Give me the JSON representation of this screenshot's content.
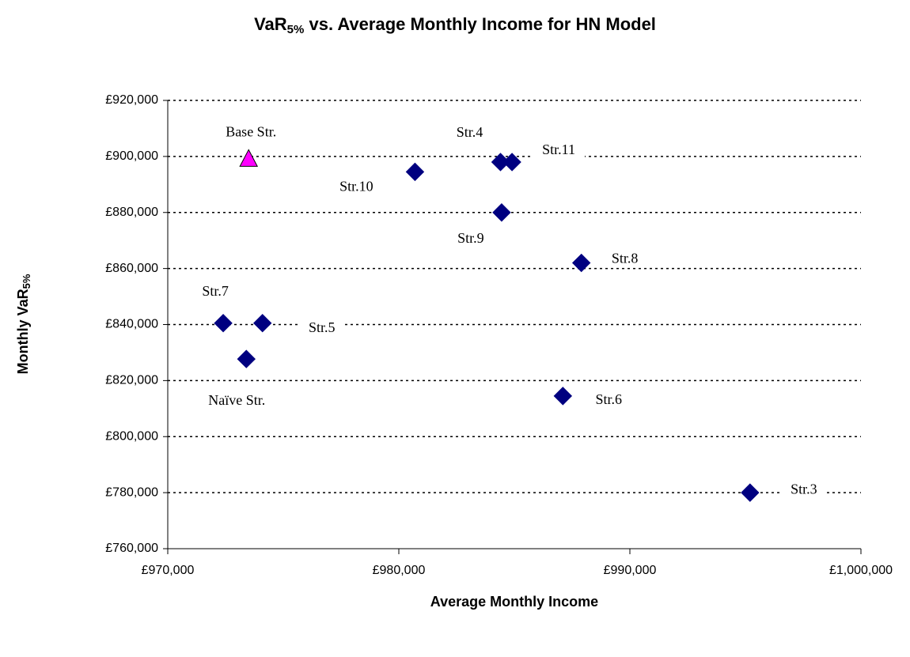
{
  "chart_data": {
    "type": "scatter",
    "title": {
      "main": "VaR",
      "sub": "5%",
      "rest": " vs. Average Monthly Income for HN Model"
    },
    "x_label": "Average Monthly Income",
    "y_label": {
      "main": "Monthly VaR",
      "sub": "5%"
    },
    "xlim": [
      970000,
      1000000
    ],
    "xticks": [
      {
        "value": 970000,
        "label": "£970,000"
      },
      {
        "value": 980000,
        "label": "£980,000"
      },
      {
        "value": 990000,
        "label": "£990,000"
      },
      {
        "value": 1000000,
        "label": "£1,000,000"
      }
    ],
    "ylim": [
      760000,
      920000
    ],
    "yticks": [
      {
        "value": 760000,
        "label": "£760,000"
      },
      {
        "value": 780000,
        "label": "£780,000"
      },
      {
        "value": 800000,
        "label": "£800,000"
      },
      {
        "value": 820000,
        "label": "£820,000"
      },
      {
        "value": 840000,
        "label": "£840,000"
      },
      {
        "value": 860000,
        "label": "£860,000"
      },
      {
        "value": 880000,
        "label": "£880,000"
      },
      {
        "value": 900000,
        "label": "£900,000"
      },
      {
        "value": 920000,
        "label": "£920,000"
      }
    ],
    "grid": true,
    "series": [
      {
        "color": "#ff00ff",
        "marker": "triangle",
        "x": [
          973500
        ],
        "values": [
          899000
        ],
        "labels": [
          "Base Str."
        ]
      },
      {
        "color": "#000080",
        "marker": "diamond",
        "x": [
          984400,
          984900,
          980700,
          984450,
          987900,
          972400,
          974100,
          973400,
          987100,
          995200
        ],
        "values": [
          898000,
          898000,
          894500,
          880000,
          862000,
          840500,
          840500,
          827700,
          814500,
          780000
        ],
        "labels": [
          "Str.4",
          "Str.11",
          "Str.10",
          "Str.9",
          "Str.8",
          "Str.7",
          "Str.5",
          "Naïve Str.",
          "Str.6",
          "Str.3"
        ]
      }
    ]
  }
}
